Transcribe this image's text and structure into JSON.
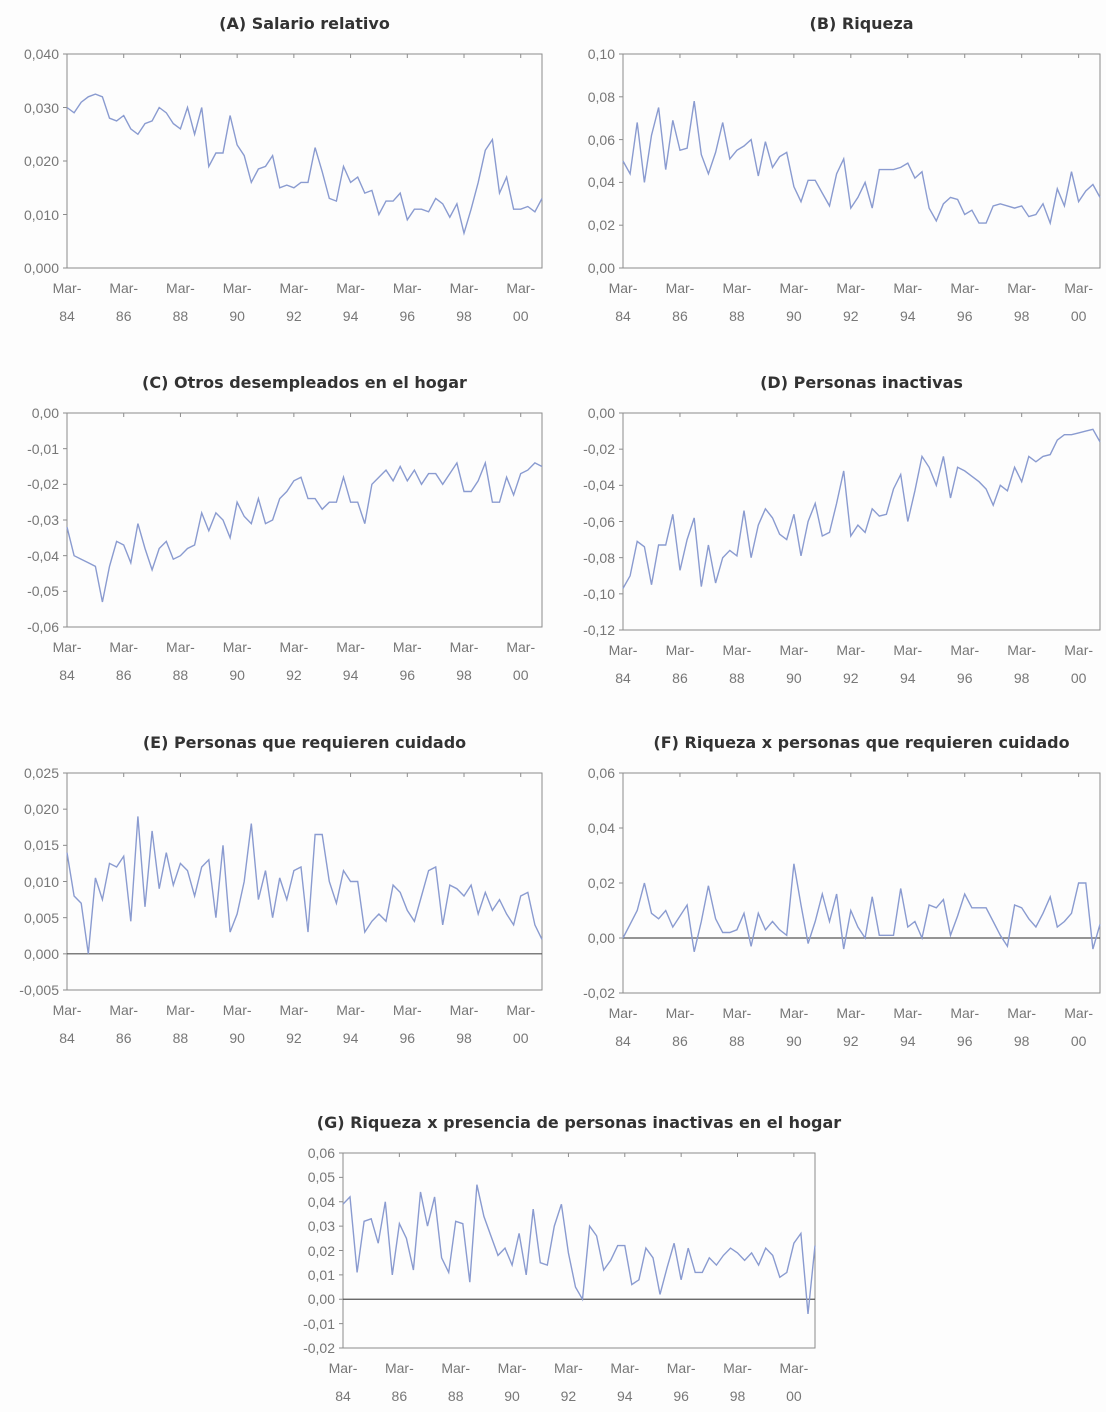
{
  "chart_data": [
    {
      "type": "line",
      "title": "(A) Salario relativo",
      "color": "#8a9bd0",
      "categories": [
        "Mar-84",
        null,
        null,
        null,
        null,
        null,
        null,
        null,
        "Mar-86",
        null,
        null,
        null,
        null,
        null,
        null,
        null,
        "Mar-88",
        null,
        null,
        null,
        null,
        null,
        null,
        null,
        "Mar-90",
        null,
        null,
        null,
        null,
        null,
        null,
        null,
        "Mar-92",
        null,
        null,
        null,
        null,
        null,
        null,
        null,
        "Mar-94",
        null,
        null,
        null,
        null,
        null,
        null,
        null,
        "Mar-96",
        null,
        null,
        null,
        null,
        null,
        null,
        null,
        "Mar-98",
        null,
        null,
        null,
        null,
        null,
        null,
        null,
        "Mar-00",
        null,
        null,
        null
      ],
      "values": [
        0.03,
        0.029,
        0.031,
        0.032,
        0.0325,
        0.032,
        0.028,
        0.0275,
        0.0285,
        0.026,
        0.025,
        0.027,
        0.0275,
        0.03,
        0.029,
        0.027,
        0.026,
        0.03,
        0.025,
        0.03,
        0.019,
        0.0215,
        0.0215,
        0.0285,
        0.023,
        0.021,
        0.016,
        0.0185,
        0.019,
        0.021,
        0.015,
        0.0155,
        0.015,
        0.016,
        0.016,
        0.0225,
        0.018,
        0.013,
        0.0125,
        0.019,
        0.016,
        0.017,
        0.014,
        0.0145,
        0.01,
        0.0125,
        0.0125,
        0.014,
        0.009,
        0.011,
        0.011,
        0.0105,
        0.013,
        0.012,
        0.0095,
        0.012,
        0.0065,
        0.011,
        0.016,
        0.022,
        0.024,
        0.014,
        0.017,
        0.011,
        0.011,
        0.0115,
        0.0105,
        0.013
      ],
      "ylim": [
        0,
        0.04
      ],
      "yticks": [
        {
          "value": 0,
          "label": "0,000"
        },
        {
          "value": 0.01,
          "label": "0,010"
        },
        {
          "value": 0.02,
          "label": "0,020"
        },
        {
          "value": 0.03,
          "label": "0,030"
        },
        {
          "value": 0.04,
          "label": "0,040"
        }
      ]
    },
    {
      "type": "line",
      "title": "(B) Riqueza",
      "color": "#8a9bd0",
      "categories": [
        "Mar-84",
        null,
        null,
        null,
        null,
        null,
        null,
        null,
        "Mar-86",
        null,
        null,
        null,
        null,
        null,
        null,
        null,
        "Mar-88",
        null,
        null,
        null,
        null,
        null,
        null,
        null,
        "Mar-90",
        null,
        null,
        null,
        null,
        null,
        null,
        null,
        "Mar-92",
        null,
        null,
        null,
        null,
        null,
        null,
        null,
        "Mar-94",
        null,
        null,
        null,
        null,
        null,
        null,
        null,
        "Mar-96",
        null,
        null,
        null,
        null,
        null,
        null,
        null,
        "Mar-98",
        null,
        null,
        null,
        null,
        null,
        null,
        null,
        "Mar-00",
        null,
        null,
        null
      ],
      "values": [
        0.05,
        0.044,
        0.068,
        0.04,
        0.062,
        0.075,
        0.046,
        0.069,
        0.055,
        0.056,
        0.078,
        0.053,
        0.044,
        0.054,
        0.068,
        0.051,
        0.055,
        0.057,
        0.06,
        0.043,
        0.059,
        0.047,
        0.052,
        0.054,
        0.038,
        0.031,
        0.041,
        0.041,
        0.035,
        0.029,
        0.044,
        0.051,
        0.028,
        0.033,
        0.04,
        0.028,
        0.046,
        0.046,
        0.046,
        0.047,
        0.049,
        0.042,
        0.045,
        0.028,
        0.022,
        0.03,
        0.033,
        0.032,
        0.025,
        0.027,
        0.021,
        0.021,
        0.029,
        0.03,
        0.029,
        0.028,
        0.029,
        0.024,
        0.025,
        0.03,
        0.021,
        0.037,
        0.029,
        0.045,
        0.031,
        0.036,
        0.039,
        0.033
      ],
      "ylim": [
        0,
        0.1
      ],
      "yticks": [
        {
          "value": 0,
          "label": "0,00"
        },
        {
          "value": 0.02,
          "label": "0,02"
        },
        {
          "value": 0.04,
          "label": "0,04"
        },
        {
          "value": 0.06,
          "label": "0,06"
        },
        {
          "value": 0.08,
          "label": "0,08"
        },
        {
          "value": 0.1,
          "label": "0,10"
        }
      ]
    },
    {
      "type": "line",
      "title": "(C) Otros desempleados en el hogar",
      "color": "#8a9bd0",
      "categories": [
        "Mar-84",
        null,
        null,
        null,
        null,
        null,
        null,
        null,
        "Mar-86",
        null,
        null,
        null,
        null,
        null,
        null,
        null,
        "Mar-88",
        null,
        null,
        null,
        null,
        null,
        null,
        null,
        "Mar-90",
        null,
        null,
        null,
        null,
        null,
        null,
        null,
        "Mar-92",
        null,
        null,
        null,
        null,
        null,
        null,
        null,
        "Mar-94",
        null,
        null,
        null,
        null,
        null,
        null,
        null,
        "Mar-96",
        null,
        null,
        null,
        null,
        null,
        null,
        null,
        "Mar-98",
        null,
        null,
        null,
        null,
        null,
        null,
        null,
        "Mar-00",
        null,
        null,
        null
      ],
      "values": [
        -0.032,
        -0.04,
        -0.041,
        -0.042,
        -0.043,
        -0.053,
        -0.043,
        -0.036,
        -0.037,
        -0.042,
        -0.031,
        -0.038,
        -0.044,
        -0.038,
        -0.036,
        -0.041,
        -0.04,
        -0.038,
        -0.037,
        -0.028,
        -0.033,
        -0.028,
        -0.03,
        -0.035,
        -0.025,
        -0.029,
        -0.031,
        -0.024,
        -0.031,
        -0.03,
        -0.024,
        -0.022,
        -0.019,
        -0.018,
        -0.024,
        -0.024,
        -0.027,
        -0.025,
        -0.025,
        -0.018,
        -0.025,
        -0.025,
        -0.031,
        -0.02,
        -0.018,
        -0.016,
        -0.019,
        -0.015,
        -0.019,
        -0.016,
        -0.02,
        -0.017,
        -0.017,
        -0.02,
        -0.017,
        -0.014,
        -0.022,
        -0.022,
        -0.019,
        -0.014,
        -0.025,
        -0.025,
        -0.018,
        -0.023,
        -0.017,
        -0.016,
        -0.014,
        -0.015
      ],
      "ylim": [
        -0.06,
        0
      ],
      "yticks": [
        {
          "value": -0.06,
          "label": "-0,06"
        },
        {
          "value": -0.05,
          "label": "-0,05"
        },
        {
          "value": -0.04,
          "label": "-0,04"
        },
        {
          "value": -0.03,
          "label": "-0,03"
        },
        {
          "value": -0.02,
          "label": "-0,02"
        },
        {
          "value": -0.01,
          "label": "-0,01"
        },
        {
          "value": 0,
          "label": "0,00"
        }
      ]
    },
    {
      "type": "line",
      "title": "(D) Personas inactivas",
      "color": "#8a9bd0",
      "categories": [
        "Mar-84",
        null,
        null,
        null,
        null,
        null,
        null,
        null,
        "Mar-86",
        null,
        null,
        null,
        null,
        null,
        null,
        null,
        "Mar-88",
        null,
        null,
        null,
        null,
        null,
        null,
        null,
        "Mar-90",
        null,
        null,
        null,
        null,
        null,
        null,
        null,
        "Mar-92",
        null,
        null,
        null,
        null,
        null,
        null,
        null,
        "Mar-94",
        null,
        null,
        null,
        null,
        null,
        null,
        null,
        "Mar-96",
        null,
        null,
        null,
        null,
        null,
        null,
        null,
        "Mar-98",
        null,
        null,
        null,
        null,
        null,
        null,
        null,
        "Mar-00",
        null,
        null,
        null
      ],
      "values": [
        -0.097,
        -0.09,
        -0.071,
        -0.074,
        -0.095,
        -0.073,
        -0.073,
        -0.056,
        -0.087,
        -0.07,
        -0.058,
        -0.096,
        -0.073,
        -0.094,
        -0.08,
        -0.076,
        -0.079,
        -0.054,
        -0.08,
        -0.062,
        -0.053,
        -0.058,
        -0.067,
        -0.07,
        -0.056,
        -0.079,
        -0.06,
        -0.05,
        -0.068,
        -0.066,
        -0.05,
        -0.032,
        -0.068,
        -0.062,
        -0.066,
        -0.053,
        -0.057,
        -0.056,
        -0.042,
        -0.034,
        -0.06,
        -0.043,
        -0.024,
        -0.03,
        -0.04,
        -0.024,
        -0.047,
        -0.03,
        -0.032,
        -0.035,
        -0.038,
        -0.042,
        -0.051,
        -0.04,
        -0.043,
        -0.03,
        -0.038,
        -0.024,
        -0.027,
        -0.024,
        -0.023,
        -0.015,
        -0.012,
        -0.012,
        -0.011,
        -0.01,
        -0.009,
        -0.016
      ],
      "ylim": [
        -0.12,
        0
      ],
      "yticks": [
        {
          "value": -0.12,
          "label": "-0,12"
        },
        {
          "value": -0.1,
          "label": "-0,10"
        },
        {
          "value": -0.08,
          "label": "-0,08"
        },
        {
          "value": -0.06,
          "label": "-0,06"
        },
        {
          "value": -0.04,
          "label": "-0,04"
        },
        {
          "value": -0.02,
          "label": "-0,02"
        },
        {
          "value": 0,
          "label": "0,00"
        }
      ]
    },
    {
      "type": "line",
      "title": "(E) Personas que requieren cuidado",
      "color": "#8a9bd0",
      "categories": [
        "Mar-84",
        null,
        null,
        null,
        null,
        null,
        null,
        null,
        "Mar-86",
        null,
        null,
        null,
        null,
        null,
        null,
        null,
        "Mar-88",
        null,
        null,
        null,
        null,
        null,
        null,
        null,
        "Mar-90",
        null,
        null,
        null,
        null,
        null,
        null,
        null,
        "Mar-92",
        null,
        null,
        null,
        null,
        null,
        null,
        null,
        "Mar-94",
        null,
        null,
        null,
        null,
        null,
        null,
        null,
        "Mar-96",
        null,
        null,
        null,
        null,
        null,
        null,
        null,
        "Mar-98",
        null,
        null,
        null,
        null,
        null,
        null,
        null,
        "Mar-00",
        null,
        null,
        null
      ],
      "values": [
        0.014,
        0.008,
        0.007,
        0.0,
        0.0105,
        0.0075,
        0.0125,
        0.012,
        0.0135,
        0.0045,
        0.019,
        0.0065,
        0.017,
        0.009,
        0.014,
        0.0095,
        0.0125,
        0.0115,
        0.008,
        0.012,
        0.013,
        0.005,
        0.015,
        0.003,
        0.0055,
        0.01,
        0.018,
        0.0075,
        0.0115,
        0.005,
        0.0105,
        0.0075,
        0.0115,
        0.012,
        0.003,
        0.0165,
        0.0165,
        0.01,
        0.007,
        0.0115,
        0.01,
        0.01,
        0.003,
        0.0045,
        0.0055,
        0.0045,
        0.0095,
        0.0085,
        0.006,
        0.0045,
        0.008,
        0.0115,
        0.012,
        0.004,
        0.0095,
        0.009,
        0.008,
        0.0095,
        0.0055,
        0.0085,
        0.006,
        0.0075,
        0.0055,
        0.004,
        0.008,
        0.0085,
        0.004,
        0.002
      ],
      "ylim": [
        -0.005,
        0.025
      ],
      "yticks": [
        {
          "value": -0.005,
          "label": "-0,005"
        },
        {
          "value": 0,
          "label": "0,000"
        },
        {
          "value": 0.005,
          "label": "0,005"
        },
        {
          "value": 0.01,
          "label": "0,010"
        },
        {
          "value": 0.015,
          "label": "0,015"
        },
        {
          "value": 0.02,
          "label": "0,020"
        },
        {
          "value": 0.025,
          "label": "0,025"
        }
      ]
    },
    {
      "type": "line",
      "title": "(F) Riqueza x personas que requieren cuidado",
      "color": "#8a9bd0",
      "categories": [
        "Mar-84",
        null,
        null,
        null,
        null,
        null,
        null,
        null,
        "Mar-86",
        null,
        null,
        null,
        null,
        null,
        null,
        null,
        "Mar-88",
        null,
        null,
        null,
        null,
        null,
        null,
        null,
        "Mar-90",
        null,
        null,
        null,
        null,
        null,
        null,
        null,
        "Mar-92",
        null,
        null,
        null,
        null,
        null,
        null,
        null,
        "Mar-94",
        null,
        null,
        null,
        null,
        null,
        null,
        null,
        "Mar-96",
        null,
        null,
        null,
        null,
        null,
        null,
        null,
        "Mar-98",
        null,
        null,
        null,
        null,
        null,
        null,
        null,
        "Mar-00",
        null,
        null,
        null
      ],
      "values": [
        0.0,
        0.005,
        0.01,
        0.02,
        0.009,
        0.007,
        0.01,
        0.004,
        0.008,
        0.012,
        -0.005,
        0.006,
        0.019,
        0.007,
        0.002,
        0.002,
        0.003,
        0.009,
        -0.003,
        0.009,
        0.003,
        0.006,
        0.003,
        0.001,
        0.027,
        0.012,
        -0.002,
        0.006,
        0.016,
        0.006,
        0.016,
        -0.004,
        0.01,
        0.004,
        0.0,
        0.015,
        0.001,
        0.001,
        0.001,
        0.018,
        0.004,
        0.006,
        0.0,
        0.012,
        0.011,
        0.014,
        0.001,
        0.008,
        0.016,
        0.011,
        0.011,
        0.011,
        0.006,
        0.001,
        -0.003,
        0.012,
        0.011,
        0.007,
        0.004,
        0.009,
        0.015,
        0.004,
        0.006,
        0.009,
        0.02,
        0.02,
        -0.004,
        0.005
      ],
      "ylim": [
        -0.02,
        0.06
      ],
      "yticks": [
        {
          "value": -0.02,
          "label": "-0,02"
        },
        {
          "value": 0,
          "label": "0,00"
        },
        {
          "value": 0.02,
          "label": "0,02"
        },
        {
          "value": 0.04,
          "label": "0,04"
        },
        {
          "value": 0.06,
          "label": "0,06"
        }
      ]
    },
    {
      "type": "line",
      "title": "(G) Riqueza x presencia de personas inactivas en el hogar",
      "color": "#8a9bd0",
      "categories": [
        "Mar-84",
        null,
        null,
        null,
        null,
        null,
        null,
        null,
        "Mar-86",
        null,
        null,
        null,
        null,
        null,
        null,
        null,
        "Mar-88",
        null,
        null,
        null,
        null,
        null,
        null,
        null,
        "Mar-90",
        null,
        null,
        null,
        null,
        null,
        null,
        null,
        "Mar-92",
        null,
        null,
        null,
        null,
        null,
        null,
        null,
        "Mar-94",
        null,
        null,
        null,
        null,
        null,
        null,
        null,
        "Mar-96",
        null,
        null,
        null,
        null,
        null,
        null,
        null,
        "Mar-98",
        null,
        null,
        null,
        null,
        null,
        null,
        null,
        "Mar-00",
        null,
        null,
        null
      ],
      "values": [
        0.039,
        0.042,
        0.011,
        0.032,
        0.033,
        0.023,
        0.04,
        0.01,
        0.031,
        0.025,
        0.012,
        0.044,
        0.03,
        0.042,
        0.017,
        0.011,
        0.032,
        0.031,
        0.007,
        0.047,
        0.034,
        0.026,
        0.018,
        0.021,
        0.014,
        0.027,
        0.01,
        0.037,
        0.015,
        0.014,
        0.03,
        0.039,
        0.019,
        0.005,
        0.0,
        0.03,
        0.026,
        0.012,
        0.016,
        0.022,
        0.022,
        0.006,
        0.008,
        0.021,
        0.017,
        0.002,
        0.013,
        0.023,
        0.008,
        0.021,
        0.011,
        0.011,
        0.017,
        0.014,
        0.018,
        0.021,
        0.019,
        0.016,
        0.019,
        0.014,
        0.021,
        0.018,
        0.009,
        0.011,
        0.023,
        0.027,
        -0.006,
        0.022
      ],
      "ylim": [
        -0.02,
        0.06
      ],
      "yticks": [
        {
          "value": -0.02,
          "label": "-0,02"
        },
        {
          "value": -0.01,
          "label": "-0,01"
        },
        {
          "value": 0,
          "label": "0,00"
        },
        {
          "value": 0.01,
          "label": "0,01"
        },
        {
          "value": 0.02,
          "label": "0,02"
        },
        {
          "value": 0.03,
          "label": "0,03"
        },
        {
          "value": 0.04,
          "label": "0,04"
        },
        {
          "value": 0.05,
          "label": "0,05"
        },
        {
          "value": 0.06,
          "label": "0,06"
        }
      ]
    }
  ]
}
